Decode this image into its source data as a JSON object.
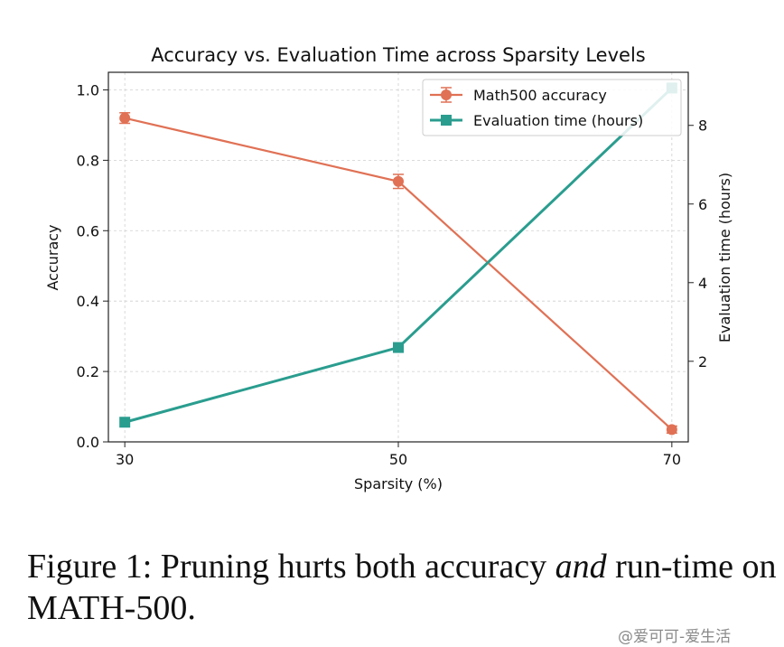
{
  "chart_data": {
    "type": "line",
    "title": "Accuracy vs. Evaluation Time across Sparsity Levels",
    "xlabel": "Sparsity (%)",
    "ylabel": "Accuracy",
    "y2label": "Evaluation time (hours)",
    "x": [
      30,
      50,
      70
    ],
    "xticks": [
      "30",
      "50",
      "70"
    ],
    "ylim": [
      0,
      1.05
    ],
    "yticks": [
      "0.0",
      "0.2",
      "0.4",
      "0.6",
      "0.8",
      "1.0"
    ],
    "y2lim": [
      -0.05,
      9.35
    ],
    "y2ticks": [
      "2",
      "4",
      "6",
      "8"
    ],
    "grid": true,
    "legend_position": "top-right",
    "series": [
      {
        "name": "Math500 accuracy",
        "axis": "left",
        "marker": "circle",
        "color": "#e07155",
        "values": [
          0.92,
          0.74,
          0.035
        ],
        "error": [
          0.015,
          0.02,
          0.01
        ]
      },
      {
        "name": "Evaluation time (hours)",
        "axis": "right",
        "marker": "square",
        "color": "#2a9d8f",
        "values": [
          0.45,
          2.35,
          8.95
        ]
      }
    ]
  },
  "caption": {
    "prefix": "Figure 1: Pruning hurts both accuracy ",
    "emphasis": "and",
    "suffix": " run-time on MATH-500."
  },
  "watermark": "@爱可可-爱生活"
}
